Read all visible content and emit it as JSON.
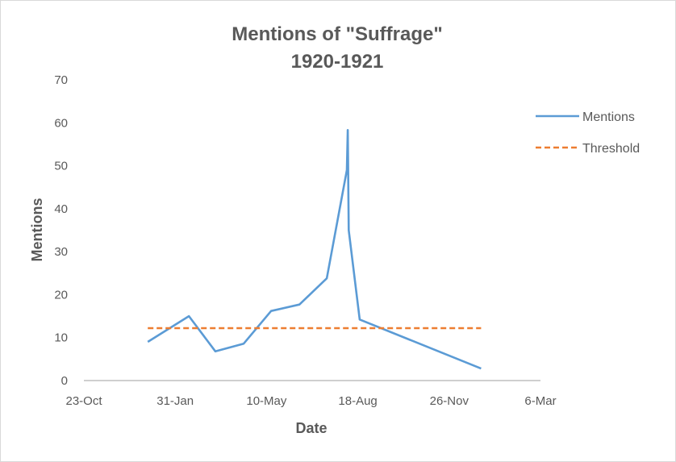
{
  "chart_data": {
    "type": "line",
    "title": [
      "Mentions of \"Suffrage\"",
      "1920-1921"
    ],
    "xlabel": "Date",
    "ylabel": "Mentions",
    "x_axis_type": "date",
    "xlim": [
      "1919-10-23",
      "1921-03-06"
    ],
    "x_ticks": [
      {
        "date": "1919-10-23",
        "label": "23-Oct"
      },
      {
        "date": "1920-01-31",
        "label": "31-Jan"
      },
      {
        "date": "1920-05-10",
        "label": "10-May"
      },
      {
        "date": "1920-08-18",
        "label": "18-Aug"
      },
      {
        "date": "1920-11-26",
        "label": "26-Nov"
      },
      {
        "date": "1921-03-06",
        "label": "6-Mar"
      }
    ],
    "ylim": [
      0,
      70
    ],
    "y_ticks": [
      0,
      10,
      20,
      30,
      40,
      50,
      60,
      70
    ],
    "grid": false,
    "legend_position": "right",
    "series": [
      {
        "name": "Mentions",
        "style": "solid",
        "color": "#5b9bd5",
        "points": [
          {
            "x": "1920-01-01",
            "y": 9
          },
          {
            "x": "1920-02-15",
            "y": 15
          },
          {
            "x": "1920-03-15",
            "y": 6.8
          },
          {
            "x": "1920-04-15",
            "y": 8.6
          },
          {
            "x": "1920-05-15",
            "y": 16.2
          },
          {
            "x": "1920-06-15",
            "y": 17.7
          },
          {
            "x": "1920-07-15",
            "y": 23.8
          },
          {
            "x": "1920-08-06",
            "y": 49
          },
          {
            "x": "1920-08-07",
            "y": 58.3
          },
          {
            "x": "1920-08-08",
            "y": 35
          },
          {
            "x": "1920-08-20",
            "y": 14.2
          },
          {
            "x": "1920-12-31",
            "y": 2.8
          }
        ]
      },
      {
        "name": "Threshold",
        "style": "dashed",
        "color": "#ed7d31",
        "points": [
          {
            "x": "1920-01-01",
            "y": 12.2
          },
          {
            "x": "1920-12-31",
            "y": 12.2
          }
        ]
      }
    ]
  }
}
